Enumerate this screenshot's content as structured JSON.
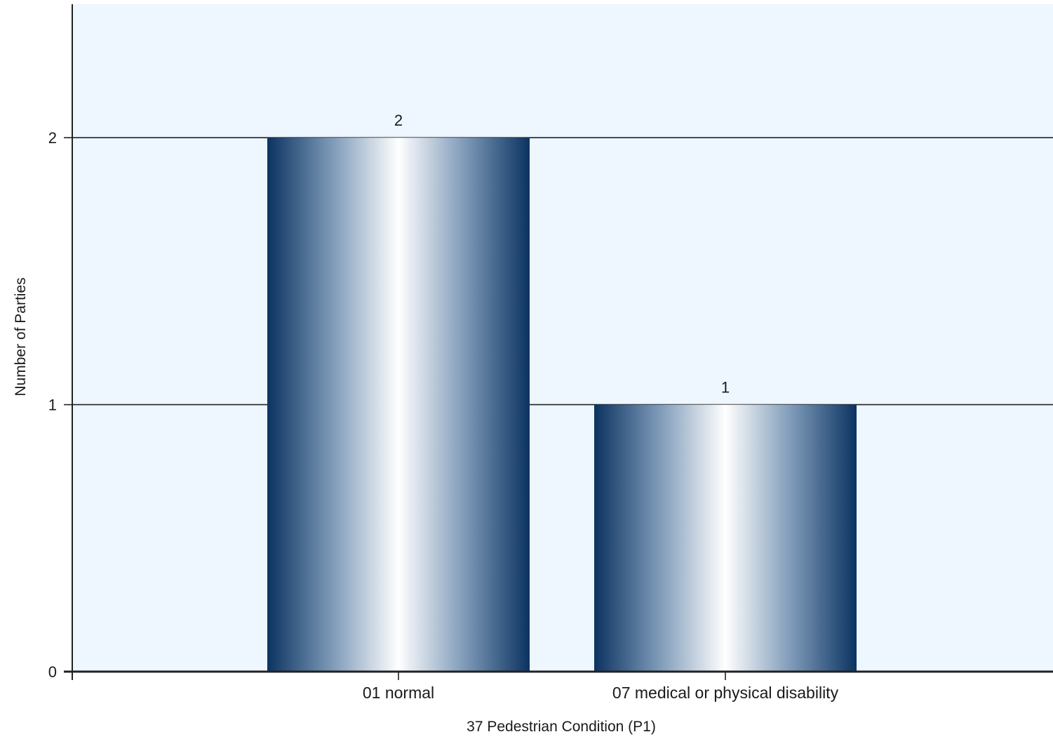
{
  "chart_data": {
    "type": "bar",
    "categories": [
      "01 normal",
      "07 medical or physical disability"
    ],
    "values": [
      2,
      1
    ],
    "data_labels": [
      "2",
      "1"
    ],
    "xlabel": "37 Pedestrian Condition (P1)",
    "ylabel": "Number of Parties",
    "ylim": [
      0,
      2.5
    ],
    "yticks": [
      0,
      1,
      2
    ],
    "grid": true,
    "legend": "none",
    "colors": {
      "plot_background": "#eef6ff",
      "bar_edge": "#0b3361",
      "bar_mid": "#7f9bb9",
      "bar_highlight": "#ffffff",
      "gridline": "#222222",
      "axis": "#222222"
    }
  }
}
